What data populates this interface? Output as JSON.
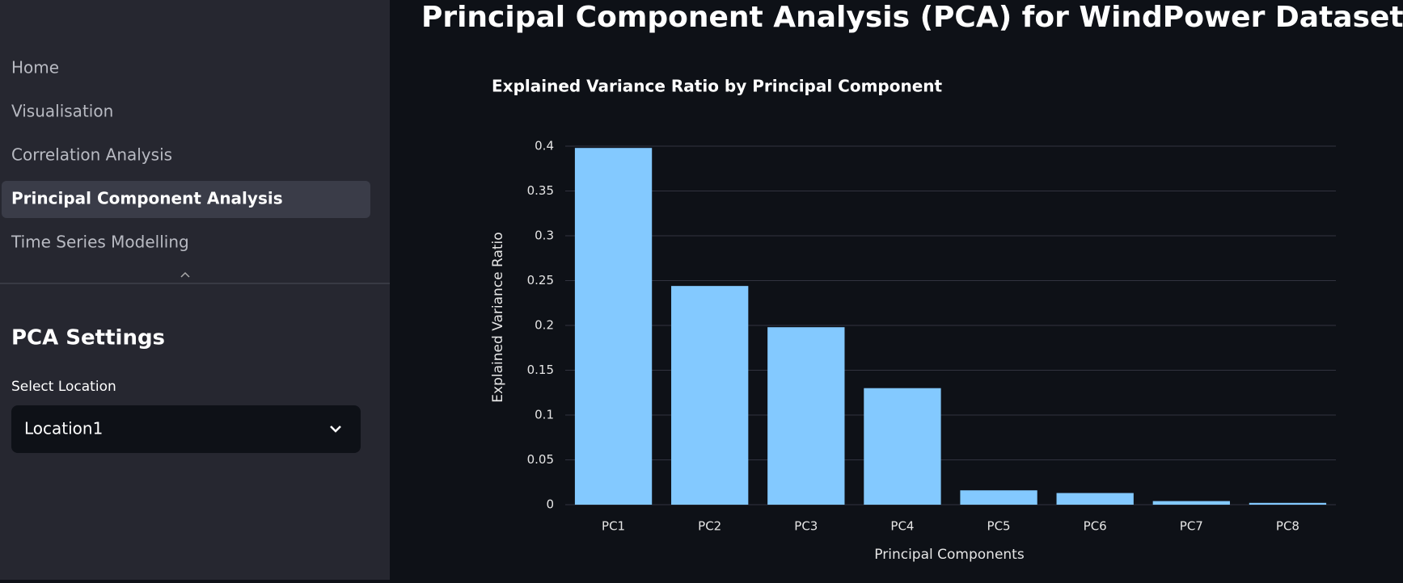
{
  "sidebar": {
    "nav": [
      "Home",
      "Visualisation",
      "Correlation Analysis",
      "Principal Component Analysis",
      "Time Series Modelling"
    ],
    "settings_title": "PCA Settings",
    "select_label": "Select Location",
    "select_value": "Location1"
  },
  "header": {
    "title": "Principal Component Analysis (PCA) for WindPower Datasets"
  },
  "chart_data": {
    "type": "bar",
    "title": "Explained Variance Ratio by Principal Component",
    "x_label": "Principal Components",
    "y_label": "Explained Variance Ratio",
    "categories": [
      "PC1",
      "PC2",
      "PC3",
      "PC4",
      "PC5",
      "PC6",
      "PC7",
      "PC8"
    ],
    "values": [
      0.398,
      0.244,
      0.198,
      0.13,
      0.016,
      0.013,
      0.004,
      0.002
    ],
    "color": "#83c9ff",
    "ylim": [
      0,
      0.4
    ],
    "yticks": [
      0,
      0.05,
      0.1,
      0.15,
      0.2,
      0.25,
      0.3,
      0.35,
      0.4
    ],
    "grid": true
  }
}
